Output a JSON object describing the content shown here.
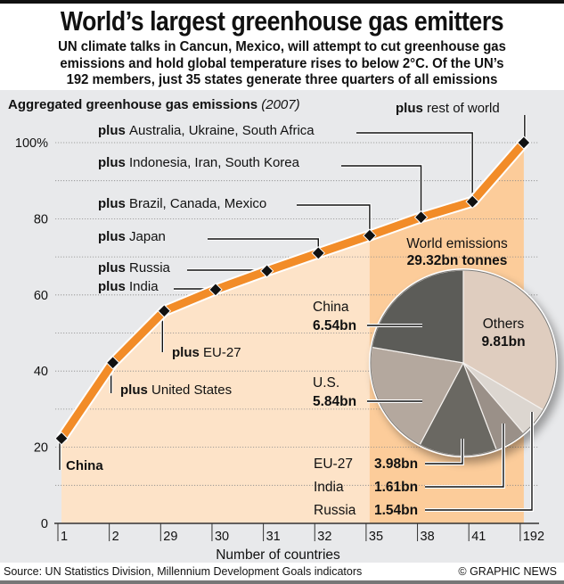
{
  "header": {
    "title": "World’s largest greenhouse gas emitters",
    "subtitle_lines": [
      "UN climate talks in Cancun, Mexico, will attempt to cut greenhouse gas",
      "emissions and hold global temperature rises to below 2°C. Of the UN’s",
      "192 members, just 35 states generate three quarters of all emissions"
    ]
  },
  "footer": {
    "source": "Source: UN Statistics Division, Millennium Development Goals indicators",
    "credit": "© GRAPHIC NEWS"
  },
  "colors": {
    "line": "#f28c28",
    "area_light": "#fde3c8",
    "area_dark": "#fccc9a",
    "panel": "#e8e9eb"
  },
  "chart_data": [
    {
      "type": "line",
      "title": "Aggregated greenhouse gas emissions",
      "title_year": "(2007)",
      "xlabel": "Number of countries",
      "ylabel": "",
      "y_unit": "%",
      "ylim": [
        0,
        100
      ],
      "yticks": [
        0,
        20,
        40,
        60,
        80,
        100
      ],
      "ytick_labels": [
        "0",
        "20",
        "40",
        "60",
        "80",
        "100%"
      ],
      "grid": true,
      "x": [
        "1",
        "2",
        "29",
        "30",
        "31",
        "32",
        "35",
        "38",
        "41",
        "192"
      ],
      "values": [
        22.3,
        42.2,
        55.8,
        61.4,
        66.3,
        71.0,
        75.6,
        80.4,
        84.5,
        100
      ],
      "highlight_range": [
        "35",
        "192"
      ],
      "annotations": [
        {
          "bold": "",
          "text": "China",
          "bold_only": "China",
          "point": 0
        },
        {
          "bold": "plus",
          "text": "United States",
          "point": 1
        },
        {
          "bold": "plus",
          "text": "EU-27",
          "point": 2
        },
        {
          "bold": "plus",
          "text": "India",
          "point": 3
        },
        {
          "bold": "plus",
          "text": "Russia",
          "point": 4
        },
        {
          "bold": "plus",
          "text": "Japan",
          "point": 5
        },
        {
          "bold": "plus",
          "text": "Brazil, Canada, Mexico",
          "point": 6
        },
        {
          "bold": "plus",
          "text": "Indonesia, Iran, South Korea",
          "point": 7
        },
        {
          "bold": "plus",
          "text": "Australia, Ukraine, South Africa",
          "point": 8
        },
        {
          "bold": "plus",
          "text": "rest of world",
          "point": 9
        }
      ]
    },
    {
      "type": "pie",
      "title": "World emissions",
      "total_label": "29.32bn tonnes",
      "unit": "bn tonnes",
      "slices": [
        {
          "name": "Others",
          "value": 9.81,
          "label": "9.81bn",
          "color": "#dfcdbf"
        },
        {
          "name": "Russia",
          "value": 1.54,
          "label": "1.54bn",
          "color": "#dcd6d0"
        },
        {
          "name": "India",
          "value": 1.61,
          "label": "1.61bn",
          "color": "#9a9088"
        },
        {
          "name": "EU-27",
          "value": 3.98,
          "label": "3.98bn",
          "color": "#6b6862"
        },
        {
          "name": "U.S.",
          "value": 5.84,
          "label": "5.84bn",
          "color": "#b4a89e"
        },
        {
          "name": "China",
          "value": 6.54,
          "label": "6.54bn",
          "color": "#5c5c58"
        }
      ]
    }
  ]
}
